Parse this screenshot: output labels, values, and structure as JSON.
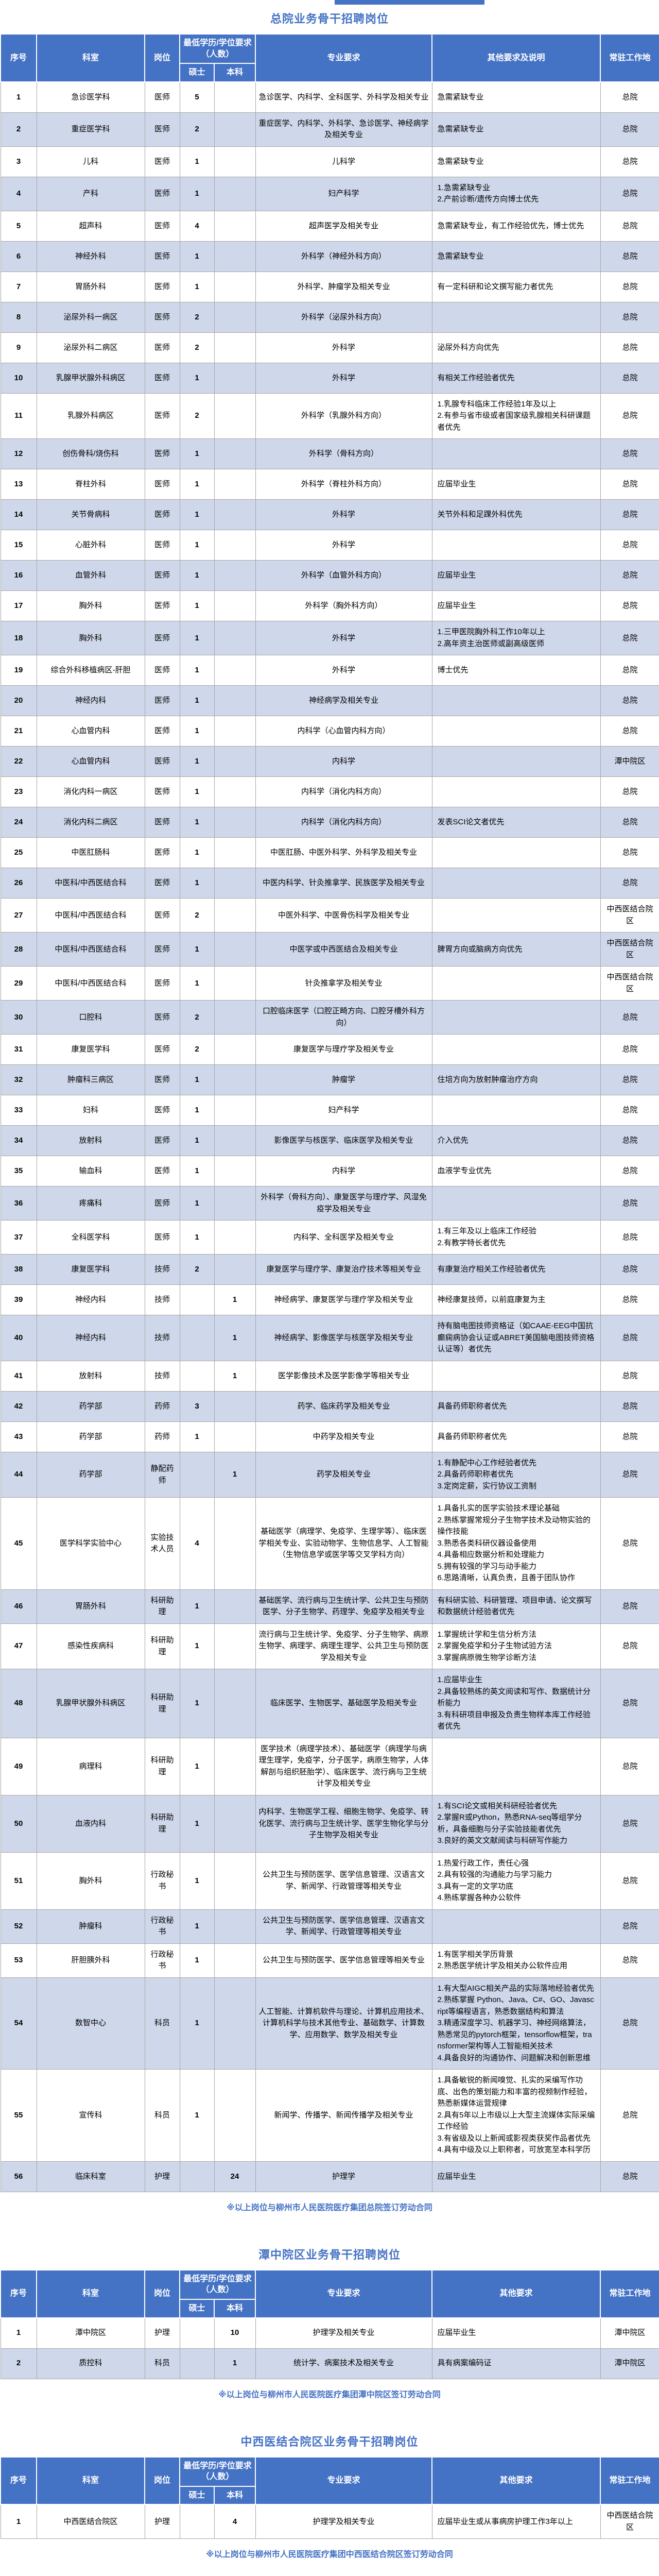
{
  "sections": [
    {
      "title": "总院业务骨干招聘岗位",
      "note": "※以上岗位与柳州市人民医院医疗集团总院签订劳动合同",
      "columns": {
        "no": "序号",
        "dept": "科室",
        "post": "岗位",
        "edu_group": "最低学历/学位要求（人数）",
        "master": "硕士",
        "bachelor": "本科",
        "major": "专业要求",
        "other": "其他要求及说明",
        "location": "常驻工作地"
      },
      "rows": [
        {
          "no": "1",
          "dept": "急诊医学科",
          "post": "医师",
          "m": "5",
          "b": "",
          "major": "急诊医学、内科学、全科医学、外科学及相关专业",
          "other": "急需紧缺专业",
          "loc": "总院"
        },
        {
          "no": "2",
          "dept": "重症医学科",
          "post": "医师",
          "m": "2",
          "b": "",
          "major": "重症医学、内科学、外科学、急诊医学、神经病学及相关专业",
          "other": "急需紧缺专业",
          "loc": "总院"
        },
        {
          "no": "3",
          "dept": "儿科",
          "post": "医师",
          "m": "1",
          "b": "",
          "major": "儿科学",
          "other": "急需紧缺专业",
          "loc": "总院"
        },
        {
          "no": "4",
          "dept": "产科",
          "post": "医师",
          "m": "1",
          "b": "",
          "major": "妇产科学",
          "other": "1.急需紧缺专业\n2.产前诊断/遗传方向博士优先",
          "loc": "总院"
        },
        {
          "no": "5",
          "dept": "超声科",
          "post": "医师",
          "m": "4",
          "b": "",
          "major": "超声医学及相关专业",
          "other": "急需紧缺专业，有工作经验优先，博士优先",
          "loc": "总院"
        },
        {
          "no": "6",
          "dept": "神经外科",
          "post": "医师",
          "m": "1",
          "b": "",
          "major": "外科学（神经外科方向）",
          "other": "急需紧缺专业",
          "loc": "总院"
        },
        {
          "no": "7",
          "dept": "胃肠外科",
          "post": "医师",
          "m": "1",
          "b": "",
          "major": "外科学、肿瘤学及相关专业",
          "other": "有一定科研和论文撰写能力者优先",
          "loc": "总院"
        },
        {
          "no": "8",
          "dept": "泌尿外科一病区",
          "post": "医师",
          "m": "2",
          "b": "",
          "major": "外科学（泌尿外科方向）",
          "other": "",
          "loc": "总院"
        },
        {
          "no": "9",
          "dept": "泌尿外科二病区",
          "post": "医师",
          "m": "2",
          "b": "",
          "major": "外科学",
          "other": "泌尿外科方向优先",
          "loc": "总院"
        },
        {
          "no": "10",
          "dept": "乳腺甲状腺外科病区",
          "post": "医师",
          "m": "1",
          "b": "",
          "major": "外科学",
          "other": "有相关工作经验者优先",
          "loc": "总院"
        },
        {
          "no": "11",
          "dept": "乳腺外科病区",
          "post": "医师",
          "m": "2",
          "b": "",
          "major": "外科学（乳腺外科方向）",
          "other": "1.乳腺专科临床工作经验1年及以上\n2.有参与省市级或者国家级乳腺相关科研课题者优先",
          "loc": "总院"
        },
        {
          "no": "12",
          "dept": "创伤骨科/烧伤科",
          "post": "医师",
          "m": "1",
          "b": "",
          "major": "外科学（骨科方向）",
          "other": "",
          "loc": "总院"
        },
        {
          "no": "13",
          "dept": "脊柱外科",
          "post": "医师",
          "m": "1",
          "b": "",
          "major": "外科学（脊柱外科方向）",
          "other": "应届毕业生",
          "loc": "总院"
        },
        {
          "no": "14",
          "dept": "关节骨病科",
          "post": "医师",
          "m": "1",
          "b": "",
          "major": "外科学",
          "other": "关节外科和足踝外科优先",
          "loc": "总院"
        },
        {
          "no": "15",
          "dept": "心脏外科",
          "post": "医师",
          "m": "1",
          "b": "",
          "major": "外科学",
          "other": "",
          "loc": "总院"
        },
        {
          "no": "16",
          "dept": "血管外科",
          "post": "医师",
          "m": "1",
          "b": "",
          "major": "外科学（血管外科方向）",
          "other": "应届毕业生",
          "loc": "总院"
        },
        {
          "no": "17",
          "dept": "胸外科",
          "post": "医师",
          "m": "1",
          "b": "",
          "major": "外科学（胸外科方向）",
          "other": "应届毕业生",
          "loc": "总院"
        },
        {
          "no": "18",
          "dept": "胸外科",
          "post": "医师",
          "m": "1",
          "b": "",
          "major": "外科学",
          "other": "1.三甲医院胸外科工作10年以上\n2.高年资主治医师或副高级医师",
          "loc": "总院"
        },
        {
          "no": "19",
          "dept": "综合外科移植病区-肝胆",
          "post": "医师",
          "m": "1",
          "b": "",
          "major": "外科学",
          "other": "博士优先",
          "loc": "总院"
        },
        {
          "no": "20",
          "dept": "神经内科",
          "post": "医师",
          "m": "1",
          "b": "",
          "major": "神经病学及相关专业",
          "other": "",
          "loc": "总院"
        },
        {
          "no": "21",
          "dept": "心血管内科",
          "post": "医师",
          "m": "1",
          "b": "",
          "major": "内科学（心血管内科方向）",
          "other": "",
          "loc": "总院"
        },
        {
          "no": "22",
          "dept": "心血管内科",
          "post": "医师",
          "m": "1",
          "b": "",
          "major": "内科学",
          "other": "",
          "loc": "潭中院区"
        },
        {
          "no": "23",
          "dept": "消化内科一病区",
          "post": "医师",
          "m": "1",
          "b": "",
          "major": "内科学（消化内科方向）",
          "other": "",
          "loc": "总院"
        },
        {
          "no": "24",
          "dept": "消化内科二病区",
          "post": "医师",
          "m": "1",
          "b": "",
          "major": "内科学（消化内科方向）",
          "other": "发表SCI论文者优先",
          "loc": "总院"
        },
        {
          "no": "25",
          "dept": "中医肛肠科",
          "post": "医师",
          "m": "1",
          "b": "",
          "major": "中医肛肠、中医外科学、外科学及相关专业",
          "other": "",
          "loc": "总院"
        },
        {
          "no": "26",
          "dept": "中医科/中西医结合科",
          "post": "医师",
          "m": "1",
          "b": "",
          "major": "中医内科学、针灸推拿学、民族医学及相关专业",
          "other": "",
          "loc": "总院"
        },
        {
          "no": "27",
          "dept": "中医科/中西医结合科",
          "post": "医师",
          "m": "2",
          "b": "",
          "major": "中医外科学、中医骨伤科学及相关专业",
          "other": "",
          "loc": "中西医结合院区"
        },
        {
          "no": "28",
          "dept": "中医科/中西医结合科",
          "post": "医师",
          "m": "1",
          "b": "",
          "major": "中医学或中西医结合及相关专业",
          "other": "脾胃方向或脑病方向优先",
          "loc": "中西医结合院区"
        },
        {
          "no": "29",
          "dept": "中医科/中西医结合科",
          "post": "医师",
          "m": "1",
          "b": "",
          "major": "针灸推拿学及相关专业",
          "other": "",
          "loc": "中西医结合院区"
        },
        {
          "no": "30",
          "dept": "口腔科",
          "post": "医师",
          "m": "2",
          "b": "",
          "major": "口腔临床医学（口腔正畸方向、口腔牙槽外科方向）",
          "other": "",
          "loc": "总院"
        },
        {
          "no": "31",
          "dept": "康复医学科",
          "post": "医师",
          "m": "2",
          "b": "",
          "major": "康复医学与理疗学及相关专业",
          "other": "",
          "loc": "总院"
        },
        {
          "no": "32",
          "dept": "肿瘤科三病区",
          "post": "医师",
          "m": "1",
          "b": "",
          "major": "肿瘤学",
          "other": "住培方向为放射肿瘤治疗方向",
          "loc": "总院"
        },
        {
          "no": "33",
          "dept": "妇科",
          "post": "医师",
          "m": "1",
          "b": "",
          "major": "妇产科学",
          "other": "",
          "loc": "总院"
        },
        {
          "no": "34",
          "dept": "放射科",
          "post": "医师",
          "m": "1",
          "b": "",
          "major": "影像医学与核医学、临床医学及相关专业",
          "other": "介入优先",
          "loc": "总院"
        },
        {
          "no": "35",
          "dept": "输血科",
          "post": "医师",
          "m": "1",
          "b": "",
          "major": "内科学",
          "other": "血液学专业优先",
          "loc": "总院"
        },
        {
          "no": "36",
          "dept": "疼痛科",
          "post": "医师",
          "m": "1",
          "b": "",
          "major": "外科学（骨科方向）、康复医学与理疗学、风湿免疫学及相关专业",
          "other": "",
          "loc": "总院"
        },
        {
          "no": "37",
          "dept": "全科医学科",
          "post": "医师",
          "m": "1",
          "b": "",
          "major": "内科学、全科医学及相关专业",
          "other": "1.有三年及以上临床工作经验\n2.有教学特长者优先",
          "loc": "总院"
        },
        {
          "no": "38",
          "dept": "康复医学科",
          "post": "技师",
          "m": "2",
          "b": "",
          "major": "康复医学与理疗学、康复治疗技术等相关专业",
          "other": "有康复治疗相关工作经验者优先",
          "loc": "总院"
        },
        {
          "no": "39",
          "dept": "神经内科",
          "post": "技师",
          "m": "",
          "b": "1",
          "major": "神经病学、康复医学与理疗学及相关专业",
          "other": "神经康复技师，以前庭康复为主",
          "loc": "总院"
        },
        {
          "no": "40",
          "dept": "神经内科",
          "post": "技师",
          "m": "",
          "b": "1",
          "major": "神经病学、影像医学与核医学及相关专业",
          "other": "持有脑电图技师资格证（如CAAE-EEG中国抗癫痫病协会认证或ABRET美国脑电图技师资格认证等）者优先",
          "loc": "总院"
        },
        {
          "no": "41",
          "dept": "放射科",
          "post": "技师",
          "m": "",
          "b": "1",
          "major": "医学影像技术及医学影像学等相关专业",
          "other": "",
          "loc": "总院"
        },
        {
          "no": "42",
          "dept": "药学部",
          "post": "药师",
          "m": "3",
          "b": "",
          "major": "药学、临床药学及相关专业",
          "other": "具备药师职称者优先",
          "loc": "总院"
        },
        {
          "no": "43",
          "dept": "药学部",
          "post": "药师",
          "m": "1",
          "b": "",
          "major": "中药学及相关专业",
          "other": "具备药师职称者优先",
          "loc": "总院"
        },
        {
          "no": "44",
          "dept": "药学部",
          "post": "静配药师",
          "m": "",
          "b": "1",
          "major": "药学及相关专业",
          "other": "1.有静配中心工作经验者优先\n2.具备药师职称者优先\n3.定岗定薪，实行协议工资制",
          "loc": "总院"
        },
        {
          "no": "45",
          "dept": "医学科学实验中心",
          "post": "实验技术人员",
          "m": "4",
          "b": "",
          "major": "基础医学（病理学、免疫学、生理学等）、临床医学相关专业、实验动物学、生物信息学、人工智能（生物信息学或医学等交叉学科方向）",
          "other": "1.具备扎实的医学实验技术理论基础\n2.熟练掌握常规分子生物学技术及动物实验的操作技能\n3.熟悉各类科研仪器设备使用\n4.具备相应数据分析和处理能力\n5.拥有较强的学习与动手能力\n6.思路清晰，认真负责，且善于团队协作",
          "loc": "总院"
        },
        {
          "no": "46",
          "dept": "胃肠外科",
          "post": "科研助理",
          "m": "1",
          "b": "",
          "major": "基础医学、流行病与卫生统计学、公共卫生与预防医学、分子生物学、药理学、免疫学及相关专业",
          "other": "有科研实验、科研管理、项目申请、论文撰写和数据统计经验者优先",
          "loc": "总院"
        },
        {
          "no": "47",
          "dept": "感染性疾病科",
          "post": "科研助理",
          "m": "1",
          "b": "",
          "major": "流行病与卫生统计学、免疫学、分子生物学、病原生物学、病理学、病理生理学、公共卫生与预防医学及相关专业",
          "other": "1.掌握统计学和生信分析方法\n2.掌握免疫学和分子生物试验方法\n3.掌握病原微生物学诊断方法",
          "loc": "总院"
        },
        {
          "no": "48",
          "dept": "乳腺甲状腺外科病区",
          "post": "科研助理",
          "m": "1",
          "b": "",
          "major": "临床医学、生物医学、基础医学及相关专业",
          "other": "1.应届毕业生\n2.具备较熟练的英文阅读和写作、数据统计分析能力\n3.有科研项目申报及负责生物样本库工作经验者优先",
          "loc": "总院"
        },
        {
          "no": "49",
          "dept": "病理科",
          "post": "科研助理",
          "m": "1",
          "b": "",
          "major": "医学技术（病理学技术）、基础医学（病理学与病理生理学，免疫学，分子医学，病原生物学，人体解剖与组织胚胎学）、临床医学、流行病与卫生统计学及相关专业",
          "other": "",
          "loc": "总院"
        },
        {
          "no": "50",
          "dept": "血液内科",
          "post": "科研助理",
          "m": "1",
          "b": "",
          "major": "内科学、生物医学工程、细胞生物学、免疫学、转化医学、流行病与卫生统计学、医学生物化学与分子生物学及相关专业",
          "other": "1.有SCI论文或相关科研经验者优先\n2.掌握R或Python，熟悉RNA-seq等组学分析，具备细胞与分子实验技能者优先\n3.良好的英文文献阅读与科研写作能力",
          "loc": "总院"
        },
        {
          "no": "51",
          "dept": "胸外科",
          "post": "行政秘书",
          "m": "1",
          "b": "",
          "major": "公共卫生与预防医学、医学信息管理、汉语言文学、新闻学、行政管理等相关专业",
          "other": "1.热爱行政工作，责任心强\n2.具有较强的沟通能力与学习能力\n3.具有一定的文学功底\n4.熟练掌握各种办公软件",
          "loc": "总院"
        },
        {
          "no": "52",
          "dept": "肿瘤科",
          "post": "行政秘书",
          "m": "1",
          "b": "",
          "major": "公共卫生与预防医学、医学信息管理、汉语言文学、新闻学、行政管理等相关专业",
          "other": "",
          "loc": "总院"
        },
        {
          "no": "53",
          "dept": "肝胆胰外科",
          "post": "行政秘书",
          "m": "1",
          "b": "",
          "major": "公共卫生与预防医学、医学信息管理等相关专业",
          "other": "1.有医学相关学历背景\n2.熟悉医学统计学及相关办公软件应用",
          "loc": "总院"
        },
        {
          "no": "54",
          "dept": "数智中心",
          "post": "科员",
          "m": "1",
          "b": "",
          "major": "人工智能、计算机软件与理论、计算机应用技术、计算机科学与技术其他专业、基础数学、计算数学、应用数学、数学及相关专业",
          "other": "1.有大型AIGC相关产品的实际落地经验者优先\n2.熟练掌握 Python、Java、C#、GO、Javascript等编程语言，熟悉数据结构和算法\n3.精通深度学习、机器学习、神经网络算法，熟悉常见的pytorch框架，tensorflow框架，transformer架构等人工智能相关技术\n4.具备良好的沟通协作、问题解决和创新思维",
          "loc": "总院"
        },
        {
          "no": "55",
          "dept": "宣传科",
          "post": "科员",
          "m": "1",
          "b": "",
          "major": "新闻学、传播学、新闻传播学及相关专业",
          "other": "1.具备敏锐的新闻嗅觉、扎实的采编写作功底、出色的策划能力和丰富的视频制作经验，熟悉新媒体运营规律\n2.具有5年以上市级以上大型主流媒体实际采编工作经验\n3.有省级及以上新闻或影视类获奖作品者优先\n4.具有中级及以上职称者，可放宽至本科学历",
          "loc": "总院"
        },
        {
          "no": "56",
          "dept": "临床科室",
          "post": "护理",
          "m": "",
          "b": "24",
          "major": "护理学",
          "other": "应届毕业生",
          "loc": "总院"
        }
      ]
    },
    {
      "title": "潭中院区业务骨干招聘岗位",
      "note": "※以上岗位与柳州市人民医院医疗集团潭中院区签订劳动合同",
      "columns": {
        "no": "序号",
        "dept": "科室",
        "post": "岗位",
        "edu_group": "最低学历/学位要求（人数）",
        "master": "硕士",
        "bachelor": "本科",
        "major": "专业要求",
        "other": "其他要求",
        "location": "常驻工作地"
      },
      "rows": [
        {
          "no": "1",
          "dept": "潭中院区",
          "post": "护理",
          "m": "",
          "b": "10",
          "major": "护理学及相关专业",
          "other": "应届毕业生",
          "loc": "潭中院区"
        },
        {
          "no": "2",
          "dept": "质控科",
          "post": "科员",
          "m": "",
          "b": "1",
          "major": "统计学、病案技术及相关专业",
          "other": "具有病案编码证",
          "loc": "潭中院区"
        }
      ]
    },
    {
      "title": "中西医结合院区业务骨干招聘岗位",
      "note": "※以上岗位与柳州市人民医院医疗集团中西医结合院区签订劳动合同",
      "columns": {
        "no": "序号",
        "dept": "科室",
        "post": "岗位",
        "edu_group": "最低学历/学位要求（人数）",
        "master": "硕士",
        "bachelor": "本科",
        "major": "专业要求",
        "other": "其他要求",
        "location": "常驻工作地"
      },
      "rows": [
        {
          "no": "1",
          "dept": "中西医结合院区",
          "post": "护理",
          "m": "",
          "b": "4",
          "major": "护理学及相关专业",
          "other": "应届毕业生或从事病房护理工作3年以上",
          "loc": "中西医结合院区"
        }
      ]
    }
  ]
}
